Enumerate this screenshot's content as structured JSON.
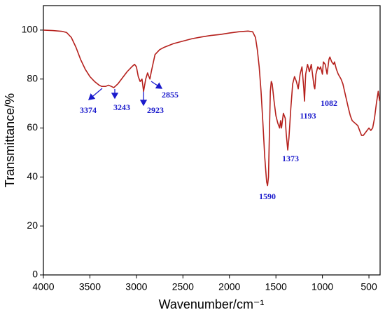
{
  "chart_data": {
    "type": "line",
    "x_label": "Wavenumber/cm⁻¹",
    "y_label": "Transmittance/%",
    "xlim": [
      4000,
      380
    ],
    "ylim": [
      0,
      110
    ],
    "xticks": [
      4000,
      3500,
      3000,
      2500,
      2000,
      1500,
      1000,
      500
    ],
    "yticks": [
      0,
      20,
      40,
      60,
      80,
      100
    ],
    "color": "#b5201c",
    "annotations": [
      "3374",
      "3243",
      "2923",
      "2855",
      "1590",
      "1373",
      "1193",
      "1082"
    ],
    "x": [
      4000,
      3900,
      3800,
      3750,
      3700,
      3650,
      3600,
      3550,
      3500,
      3450,
      3400,
      3374,
      3330,
      3300,
      3270,
      3243,
      3200,
      3150,
      3100,
      3050,
      3020,
      3000,
      2980,
      2960,
      2940,
      2923,
      2900,
      2880,
      2855,
      2840,
      2800,
      2750,
      2700,
      2600,
      2500,
      2400,
      2300,
      2200,
      2100,
      2000,
      1900,
      1800,
      1750,
      1720,
      1700,
      1680,
      1660,
      1640,
      1620,
      1600,
      1590,
      1580,
      1570,
      1560,
      1550,
      1540,
      1520,
      1500,
      1480,
      1460,
      1450,
      1440,
      1420,
      1400,
      1390,
      1373,
      1360,
      1340,
      1320,
      1300,
      1280,
      1260,
      1240,
      1220,
      1200,
      1193,
      1180,
      1160,
      1140,
      1120,
      1100,
      1090,
      1082,
      1070,
      1050,
      1030,
      1020,
      1000,
      990,
      970,
      950,
      930,
      920,
      900,
      880,
      870,
      850,
      830,
      800,
      780,
      750,
      720,
      700,
      680,
      650,
      620,
      600,
      580,
      560,
      540,
      520,
      500,
      480,
      460,
      440,
      420,
      400,
      385
    ],
    "values": [
      100,
      99.8,
      99.5,
      99,
      97,
      93,
      88,
      84,
      81,
      79,
      77.5,
      77,
      77,
      77.5,
      77,
      76.5,
      78,
      80.5,
      83,
      85,
      86,
      85,
      81,
      79,
      80,
      75,
      80,
      82.5,
      80,
      83,
      90,
      92,
      93,
      94.5,
      95.5,
      96.5,
      97.2,
      97.8,
      98.2,
      98.8,
      99.3,
      99.6,
      99.3,
      97,
      92,
      85,
      75,
      62,
      48,
      38,
      36.5,
      40,
      58,
      75,
      79,
      78,
      71,
      65,
      62,
      60,
      63,
      60,
      66,
      64,
      58,
      51,
      56,
      68,
      78,
      81,
      79,
      76,
      82,
      85,
      76,
      71,
      82,
      86,
      83,
      86,
      80,
      77,
      76,
      82,
      85,
      84,
      85,
      82,
      87,
      86,
      82,
      88,
      89,
      87,
      86,
      87,
      84,
      82,
      80,
      78,
      73,
      68,
      65,
      63,
      62,
      61,
      59,
      57,
      57,
      58,
      59,
      60,
      59,
      60,
      64,
      70,
      75,
      71
    ]
  }
}
